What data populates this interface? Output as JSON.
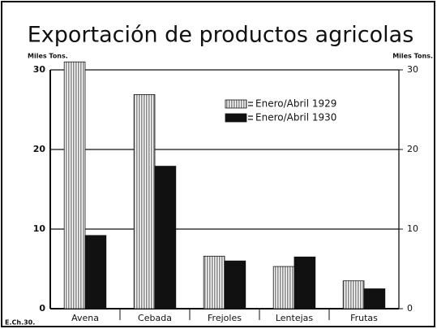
{
  "chart_data": {
    "type": "bar",
    "title": "Exportación de productos agricolas",
    "y_label": "Miles Tons.",
    "y2_label": "Miles Tons.",
    "footer": "E.Ch.30.",
    "categories": [
      "Avena",
      "Cebada",
      "Frejoles",
      "Lentejas",
      "Frutas"
    ],
    "series": [
      {
        "name": "Enero/Abril 1929",
        "color": "#8a8a8a",
        "values": [
          31,
          26.9,
          6.6,
          5.3,
          3.5
        ]
      },
      {
        "name": "Enero/Abril 1930",
        "color": "#111111",
        "values": [
          9.2,
          17.9,
          6.0,
          6.5,
          2.5
        ]
      }
    ],
    "ylim": [
      0,
      30
    ],
    "yticks": [
      0,
      10,
      20,
      30
    ],
    "y2lim": [
      0,
      30
    ],
    "y2ticks": [
      0,
      10,
      20,
      30
    ],
    "grid": true,
    "legend": "upper right"
  }
}
